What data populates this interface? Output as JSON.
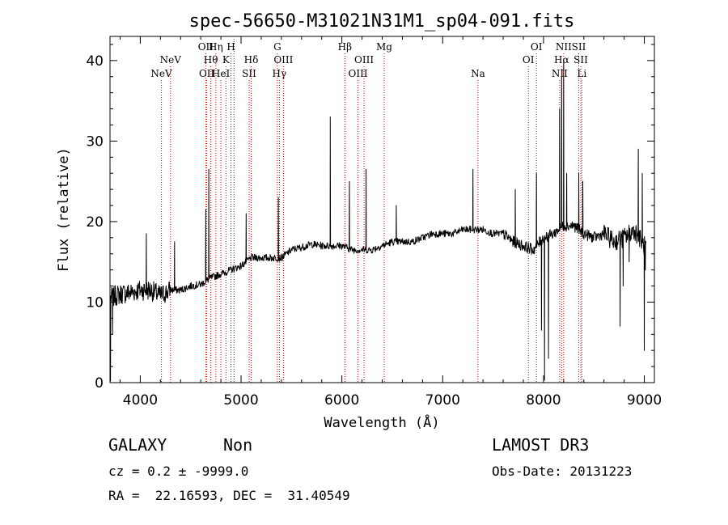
{
  "chart_data": {
    "type": "line",
    "title": "spec-56650-M31021N31M1_sp04-091.fits",
    "xlabel": "Wavelength (Å)",
    "ylabel": "Flux (relative)",
    "xlim": [
      3700,
      9100
    ],
    "ylim": [
      0,
      43
    ],
    "xticks": [
      4000,
      5000,
      6000,
      7000,
      8000,
      9000
    ],
    "yticks": [
      0,
      10,
      20,
      30,
      40
    ],
    "line_color": "#000000",
    "marker_color": "#cc0000",
    "spectrum_anchors": {
      "x": [
        3700,
        3800,
        3900,
        4000,
        4100,
        4200,
        4300,
        4400,
        4500,
        4600,
        4700,
        4800,
        4900,
        5000,
        5100,
        5200,
        5300,
        5400,
        5500,
        5600,
        5700,
        5800,
        5900,
        6000,
        6100,
        6200,
        6300,
        6400,
        6500,
        6600,
        6700,
        6800,
        6900,
        7000,
        7100,
        7200,
        7300,
        7400,
        7500,
        7600,
        7700,
        7800,
        7900,
        8000,
        8100,
        8200,
        8300,
        8400,
        8500,
        8600,
        8700,
        8800,
        8900,
        9000
      ],
      "y": [
        10.5,
        11,
        11.2,
        11.5,
        11.5,
        10.8,
        11.5,
        11.5,
        12,
        12.2,
        13,
        13.5,
        14,
        14.5,
        15.5,
        15.5,
        15.5,
        15.5,
        16.5,
        16.8,
        17.2,
        17,
        17,
        17,
        16.5,
        16.5,
        16.5,
        17,
        17.5,
        17.5,
        17.5,
        18,
        18.5,
        18.5,
        18.5,
        19,
        19,
        19,
        18.5,
        18.5,
        17.5,
        17,
        16.5,
        18,
        18.5,
        19.5,
        19.5,
        18.5,
        18,
        18.5,
        17.5,
        18,
        19,
        17
      ]
    },
    "spectrum_features": [
      {
        "x": 3705,
        "y": 0.2
      },
      {
        "x": 3725,
        "y": 6
      },
      {
        "x": 4060,
        "y": 18.5
      },
      {
        "x": 4340,
        "y": 17.5
      },
      {
        "x": 4650,
        "y": 21.5
      },
      {
        "x": 4680,
        "y": 26.5
      },
      {
        "x": 5050,
        "y": 21
      },
      {
        "x": 5370,
        "y": 23
      },
      {
        "x": 5885,
        "y": 33
      },
      {
        "x": 6075,
        "y": 25
      },
      {
        "x": 6240,
        "y": 26.5
      },
      {
        "x": 6540,
        "y": 22
      },
      {
        "x": 7300,
        "y": 26.5
      },
      {
        "x": 7720,
        "y": 24
      },
      {
        "x": 7930,
        "y": 26
      },
      {
        "x": 7980,
        "y": 6.5
      },
      {
        "x": 8010,
        "y": 0.3
      },
      {
        "x": 8050,
        "y": 3
      },
      {
        "x": 8160,
        "y": 34
      },
      {
        "x": 8180,
        "y": 38
      },
      {
        "x": 8200,
        "y": 40
      },
      {
        "x": 8230,
        "y": 26
      },
      {
        "x": 8350,
        "y": 26
      },
      {
        "x": 8390,
        "y": 25
      },
      {
        "x": 8760,
        "y": 7
      },
      {
        "x": 8790,
        "y": 12
      },
      {
        "x": 8850,
        "y": 15
      },
      {
        "x": 8940,
        "y": 29
      },
      {
        "x": 8980,
        "y": 26
      },
      {
        "x": 9000,
        "y": 4
      },
      {
        "x": 9010,
        "y": 14
      }
    ],
    "line_markers": [
      {
        "x": 4210,
        "label": "NeV",
        "row": 3
      },
      {
        "x": 4300,
        "label": "NeV",
        "row": 2
      },
      {
        "x": 4650,
        "label": "OII",
        "row": 1
      },
      {
        "x": 4660,
        "label": "OII",
        "row": 3
      },
      {
        "x": 4700,
        "label": "Hθ",
        "row": 2
      },
      {
        "x": 4750,
        "label": "Hη",
        "row": 1
      },
      {
        "x": 4800,
        "label": "HeI",
        "row": 3
      },
      {
        "x": 4850,
        "label": "K",
        "row": 2
      },
      {
        "x": 4900,
        "label": "H",
        "row": 1
      },
      {
        "x": 4930,
        "label": "",
        "row": 0
      },
      {
        "x": 5080,
        "label": "SII",
        "row": 3
      },
      {
        "x": 5100,
        "label": "Hδ",
        "row": 2
      },
      {
        "x": 5360,
        "label": "G",
        "row": 1
      },
      {
        "x": 5380,
        "label": "Hγ",
        "row": 3
      },
      {
        "x": 5420,
        "label": "OIII",
        "row": 2
      },
      {
        "x": 6030,
        "label": "Hβ",
        "row": 1
      },
      {
        "x": 6160,
        "label": "OIII",
        "row": 3
      },
      {
        "x": 6220,
        "label": "OIII",
        "row": 2
      },
      {
        "x": 6420,
        "label": "Mg",
        "row": 1
      },
      {
        "x": 7350,
        "label": "Na",
        "row": 3
      },
      {
        "x": 7850,
        "label": "OI",
        "row": 2
      },
      {
        "x": 7930,
        "label": "OI",
        "row": 1
      },
      {
        "x": 8160,
        "label": "NII",
        "row": 3
      },
      {
        "x": 8180,
        "label": "Hα",
        "row": 2
      },
      {
        "x": 8200,
        "label": "NII",
        "row": 1
      },
      {
        "x": 8350,
        "label": "SII",
        "row": 1
      },
      {
        "x": 8370,
        "label": "SII",
        "row": 2
      },
      {
        "x": 8380,
        "label": "Li",
        "row": 3
      }
    ]
  },
  "footer": {
    "object_type": "GALAXY",
    "subclass": "Non",
    "redshift": "cz = 0.2 ± -9999.0",
    "coords": "RA =  22.16593, DEC =  31.40549",
    "survey": "LAMOST DR3",
    "obs_date": "Obs-Date: 20131223"
  }
}
